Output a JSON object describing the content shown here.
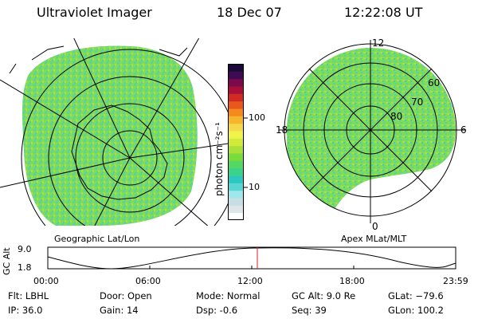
{
  "header": {
    "instrument": "Ultraviolet Imager",
    "date": "18 Dec 07",
    "time": "12:22:08 UT"
  },
  "panels": {
    "geographic_label": "Geographic Lat/Lon",
    "apex_label": "Apex MLat/MLT",
    "apex_lat_labels": [
      "60",
      "70",
      "80"
    ],
    "apex_mlt_labels": [
      "12",
      "18",
      "6",
      "0"
    ]
  },
  "colorbar": {
    "title": "photon cm⁻²s⁻¹",
    "ticks": [
      "100",
      "10"
    ],
    "scale": "log",
    "colors": [
      "#ffffff",
      "#dfe6ea",
      "#c8dde4",
      "#9fe7ea",
      "#57d6d3",
      "#2cc7c0",
      "#3ad38c",
      "#54d763",
      "#79dc3c",
      "#a9e13a",
      "#d2ea38",
      "#f2f34a",
      "#f5d84a",
      "#f7b52d",
      "#f48a1e",
      "#e8571b",
      "#d02a22",
      "#a8103a",
      "#7a0a4c",
      "#3e0a52",
      "#1a0a3a"
    ]
  },
  "altitude_plot": {
    "ylabel": "GC Alt",
    "yticks": [
      "9.0",
      "1.8"
    ],
    "xticks": [
      "00:00",
      "06:00",
      "12:00",
      "18:00",
      "23:59"
    ],
    "marker_time": "12:22",
    "marker_color": "#e02020"
  },
  "info": {
    "filter": "Flt: LBHL",
    "ip": "IP: 36.0",
    "door": "Door: Open",
    "gain": "Gain: 14",
    "mode": "Mode: Normal",
    "dsp": "Dsp:    -0.6",
    "gc_alt": "GC Alt: 9.0 Re",
    "seq": "Seq: 39",
    "glat": "GLat: −79.6",
    "glon": "GLon: 100.2"
  }
}
